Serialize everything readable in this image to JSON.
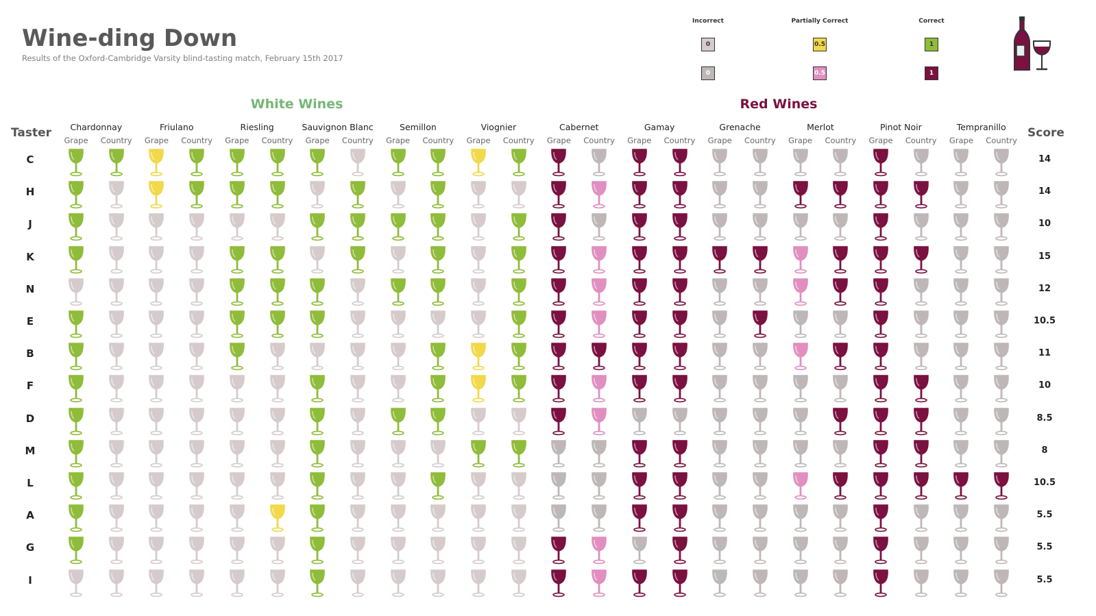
{
  "title": "Wine-ding Down",
  "subtitle": "Results of the Oxford-Cambridge Varsity blind-tasting match, February 15th 2017",
  "legend": {
    "titles": [
      "Incorrect",
      "Partially Correct",
      "Correct"
    ],
    "white_labels": [
      "0",
      "0.5",
      "1"
    ],
    "red_labels": [
      "0",
      "0.5",
      "1"
    ]
  },
  "sections": {
    "white": "White Wines",
    "red": "Red Wines"
  },
  "headers": {
    "taster": "Taster",
    "score": "Score",
    "grape": "Grape",
    "country": "Country"
  },
  "colors": {
    "white_correct": "#8fbc3a",
    "white_partial": "#f2d84b",
    "white_incorrect": "#d6cbcb",
    "red_correct": "#7a1140",
    "red_partial": "#e08fc0",
    "red_incorrect": "#bfb7b7",
    "white_title": "#76b776",
    "red_title": "#7a1140"
  },
  "icons": {
    "glass": "wine-glass-icon",
    "logo": "wine-bottle-and-glass-icon"
  },
  "chart_data": {
    "type": "table",
    "wines": [
      {
        "name": "Chardonnay",
        "type": "white"
      },
      {
        "name": "Friulano",
        "type": "white"
      },
      {
        "name": "Riesling",
        "type": "white"
      },
      {
        "name": "Sauvignon Blanc",
        "type": "white"
      },
      {
        "name": "Semillon",
        "type": "white"
      },
      {
        "name": "Viognier",
        "type": "white"
      },
      {
        "name": "Cabernet",
        "type": "red"
      },
      {
        "name": "Gamay",
        "type": "red"
      },
      {
        "name": "Grenache",
        "type": "red"
      },
      {
        "name": "Merlot",
        "type": "red"
      },
      {
        "name": "Pinot Noir",
        "type": "red"
      },
      {
        "name": "Tempranillo",
        "type": "red"
      }
    ],
    "tasters": [
      {
        "name": "C",
        "score": "14",
        "results": [
          1,
          1,
          0.5,
          1,
          1,
          1,
          1,
          0,
          1,
          1,
          0.5,
          1,
          1,
          0,
          1,
          1,
          0,
          0,
          0,
          0,
          1,
          0,
          0,
          0
        ]
      },
      {
        "name": "H",
        "score": "14",
        "results": [
          1,
          0,
          0.5,
          1,
          1,
          1,
          0,
          1,
          0,
          1,
          0,
          0,
          1,
          0.5,
          1,
          1,
          0,
          0,
          1,
          1,
          1,
          1,
          0,
          0
        ]
      },
      {
        "name": "J",
        "score": "10",
        "results": [
          1,
          0,
          0,
          0,
          0,
          0,
          1,
          1,
          1,
          1,
          0,
          1,
          1,
          0,
          1,
          1,
          0,
          0,
          0,
          0,
          1,
          0,
          0,
          0
        ]
      },
      {
        "name": "K",
        "score": "15",
        "results": [
          1,
          0,
          0,
          0,
          1,
          1,
          0,
          1,
          0,
          1,
          0,
          1,
          1,
          0.5,
          1,
          1,
          1,
          1,
          0.5,
          1,
          1,
          1,
          0,
          0
        ]
      },
      {
        "name": "N",
        "score": "12",
        "results": [
          0,
          0,
          0,
          0,
          1,
          1,
          1,
          0,
          1,
          1,
          0,
          1,
          1,
          0.5,
          1,
          1,
          0,
          0,
          0.5,
          1,
          1,
          0,
          0,
          0
        ]
      },
      {
        "name": "E",
        "score": "10.5",
        "results": [
          1,
          0,
          0,
          0,
          1,
          1,
          1,
          0,
          0,
          0,
          0,
          1,
          1,
          0.5,
          1,
          1,
          0,
          1,
          0,
          0,
          1,
          0,
          0,
          0
        ]
      },
      {
        "name": "B",
        "score": "11",
        "results": [
          1,
          0,
          0,
          0,
          1,
          0,
          0,
          0,
          0,
          1,
          0.5,
          1,
          1,
          1,
          1,
          1,
          0,
          0,
          0.5,
          1,
          1,
          0,
          0,
          0
        ]
      },
      {
        "name": "F",
        "score": "10",
        "results": [
          1,
          0,
          0,
          0,
          0,
          0,
          1,
          0,
          0,
          1,
          0.5,
          1,
          1,
          0.5,
          1,
          1,
          0,
          0,
          0,
          0,
          1,
          1,
          0,
          0
        ]
      },
      {
        "name": "D",
        "score": "8.5",
        "results": [
          1,
          0,
          0,
          0,
          0,
          0,
          1,
          0,
          1,
          1,
          0,
          0,
          1,
          0.5,
          0,
          0,
          0,
          0,
          0,
          1,
          1,
          1,
          0,
          0
        ]
      },
      {
        "name": "M",
        "score": "8",
        "results": [
          1,
          0,
          0,
          0,
          0,
          0,
          1,
          0,
          0,
          0,
          1,
          1,
          0,
          0,
          1,
          1,
          0,
          0,
          0,
          0,
          1,
          1,
          0,
          0
        ]
      },
      {
        "name": "L",
        "score": "10.5",
        "results": [
          1,
          0,
          0,
          0,
          0,
          0,
          1,
          0,
          0,
          1,
          0,
          0,
          0,
          0,
          1,
          1,
          0,
          0,
          0.5,
          1,
          1,
          1,
          1,
          1
        ]
      },
      {
        "name": "A",
        "score": "5.5",
        "results": [
          1,
          0,
          0,
          0,
          0,
          0.5,
          1,
          0,
          0,
          0,
          0,
          0,
          0,
          0,
          1,
          1,
          0,
          0,
          0,
          0,
          1,
          0,
          0,
          0
        ]
      },
      {
        "name": "G",
        "score": "5.5",
        "results": [
          1,
          0,
          0,
          0,
          0,
          0,
          1,
          0,
          0,
          0,
          0,
          0,
          1,
          0.5,
          0,
          1,
          0,
          0,
          0,
          0,
          1,
          0,
          0,
          0
        ]
      },
      {
        "name": "I",
        "score": "5.5",
        "results": [
          0,
          0,
          0,
          0,
          0,
          0,
          1,
          0,
          0,
          0,
          0,
          0,
          1,
          0.5,
          1,
          1,
          0,
          0,
          0,
          0,
          1,
          0,
          0,
          0
        ]
      }
    ]
  }
}
